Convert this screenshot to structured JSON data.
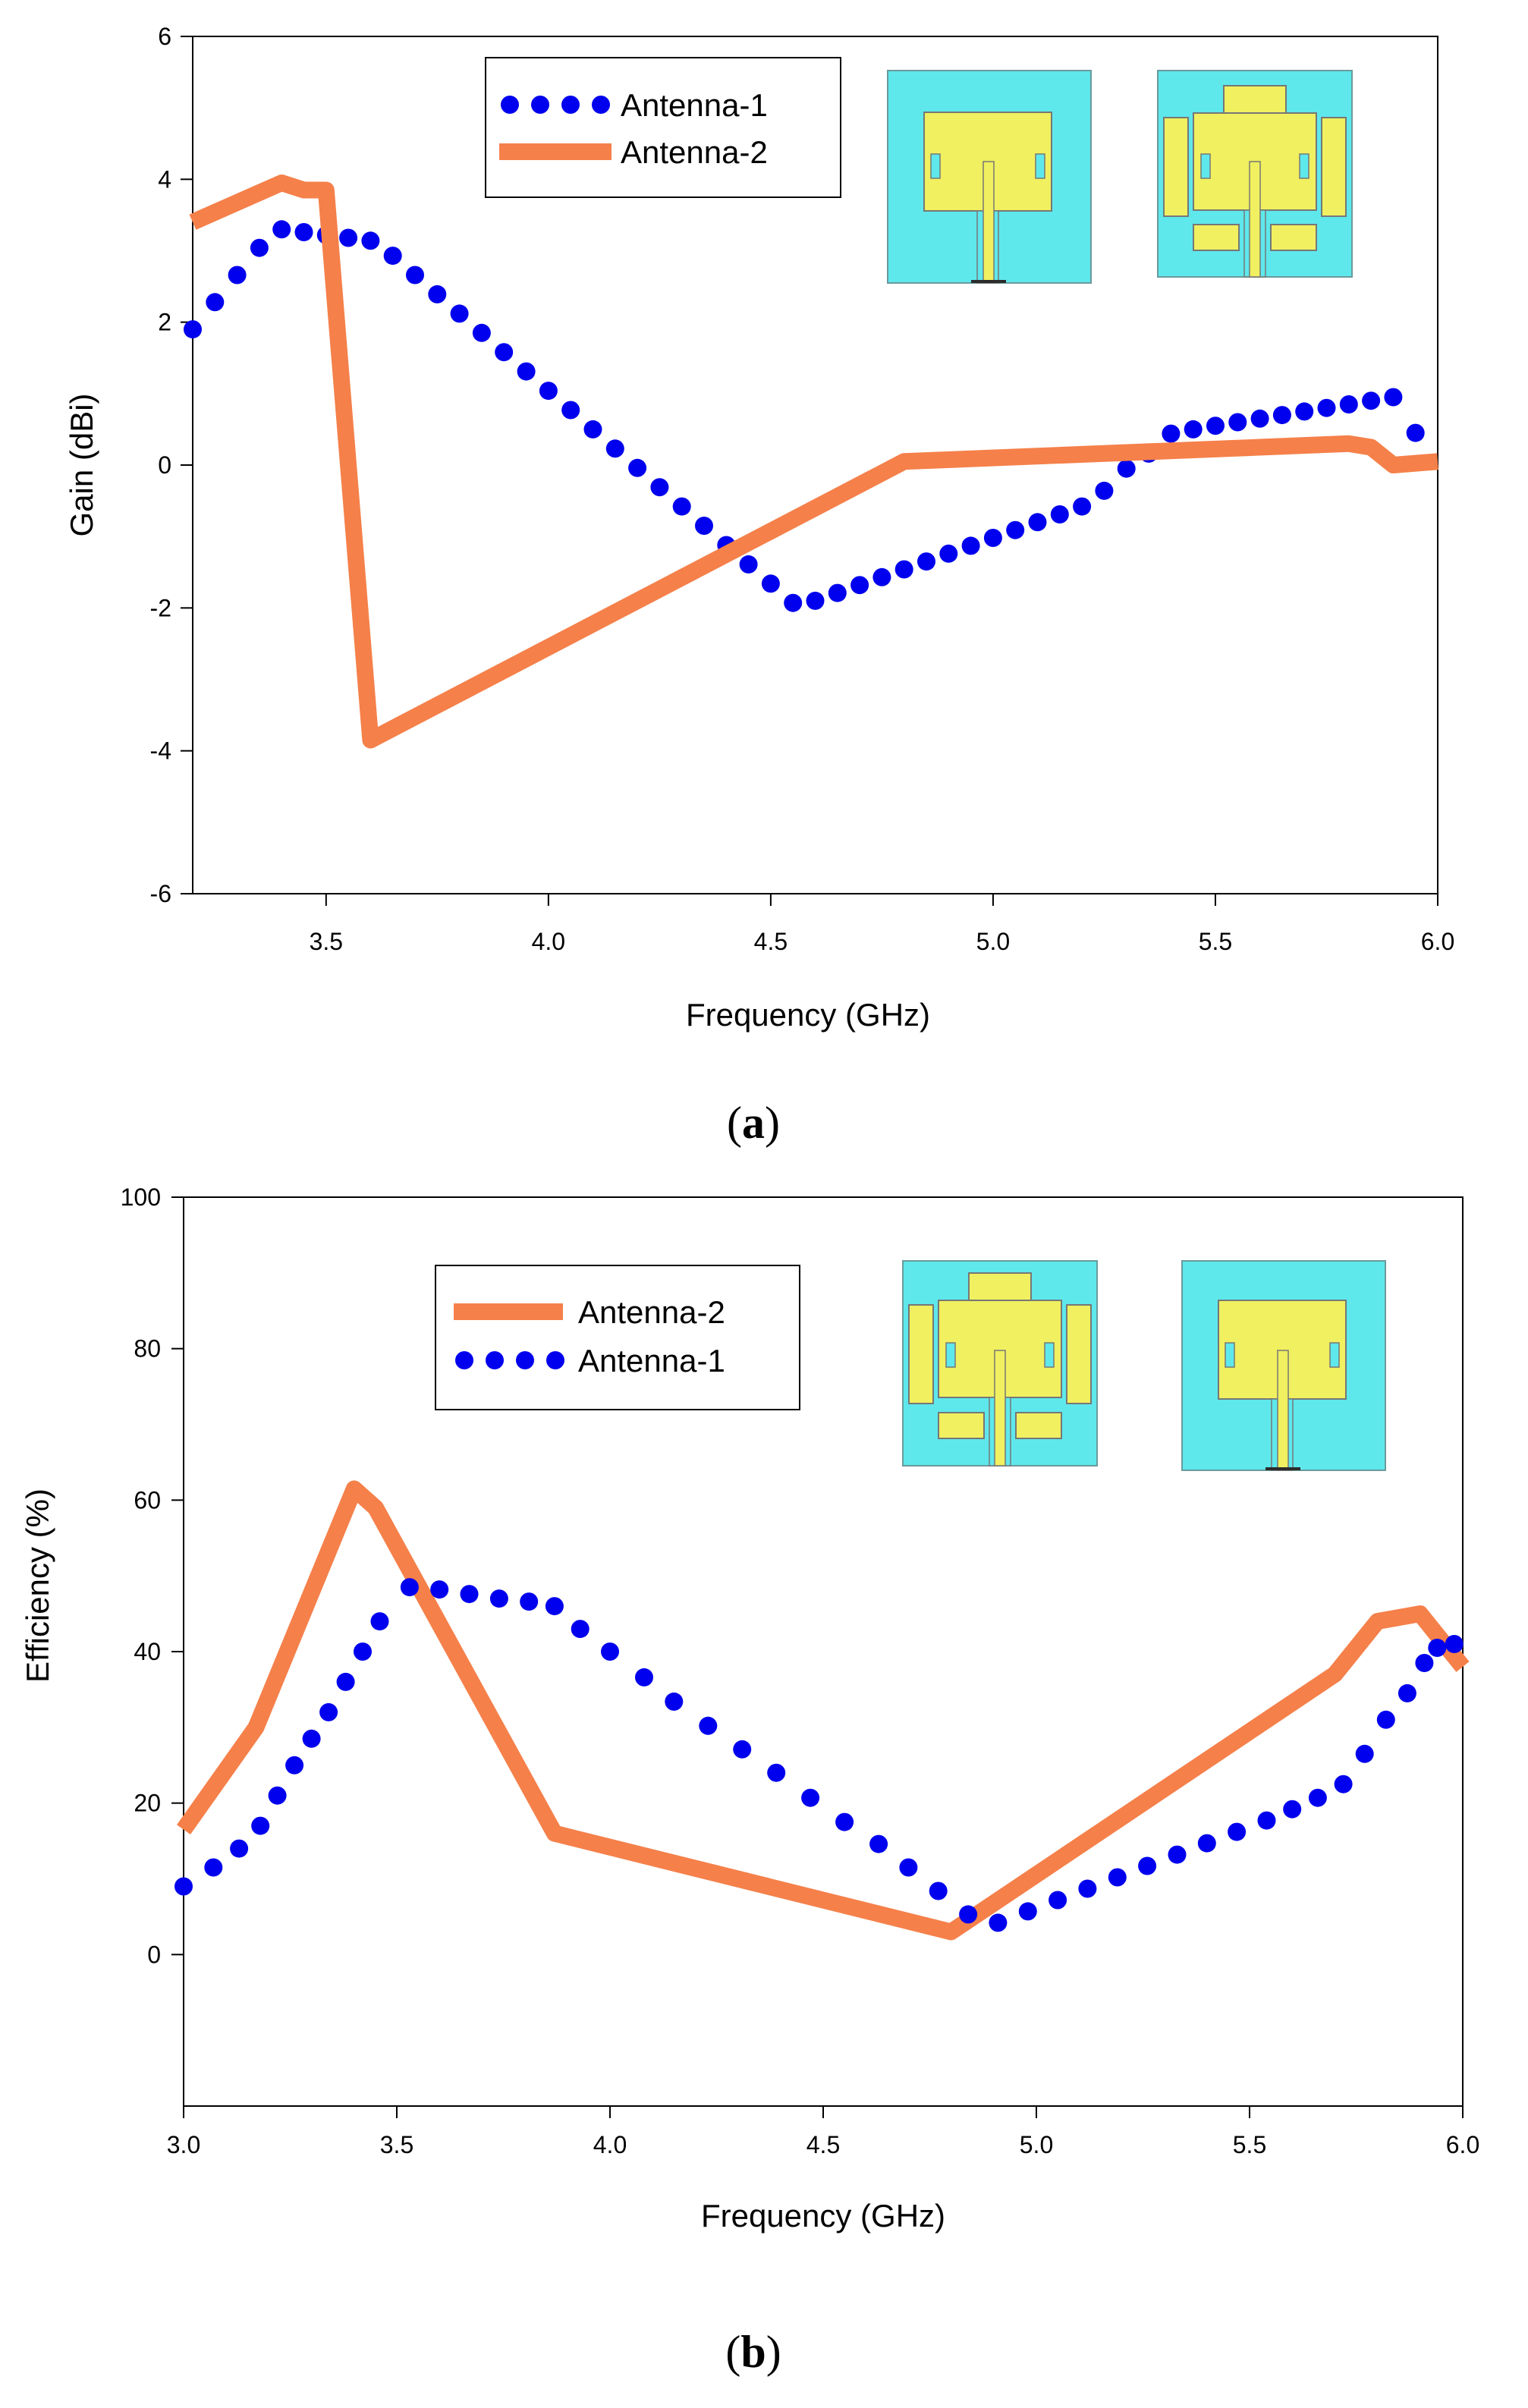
{
  "colors": {
    "antenna1": "#0000ee",
    "antenna2": "#f5804a",
    "substrate": "#5ee8ec",
    "patch": "#f0f060"
  },
  "chart_data": [
    {
      "panel": "a",
      "type": "line",
      "xlabel": "Frequency (GHz)",
      "ylabel": "Gain (dBi)",
      "xlim": [
        3.2,
        6.0
      ],
      "ylim": [
        -6,
        6
      ],
      "xticks": [
        3.5,
        4.0,
        4.5,
        5.0,
        5.5,
        6.0
      ],
      "xtick_labels": [
        "3.5",
        "4.0",
        "4.5",
        "5.0",
        "5.5",
        "6.0"
      ],
      "yticks": [
        -6,
        -4,
        -2,
        0,
        2,
        4,
        6
      ],
      "ytick_labels": [
        "-6",
        "-4",
        "-2",
        "0",
        "2",
        "4",
        "6"
      ],
      "grid": false,
      "legend_position": "top-center",
      "series": [
        {
          "name": "Antenna-1",
          "style": "dotted",
          "color": "#0000ee",
          "x": [
            3.2,
            3.25,
            3.3,
            3.35,
            3.4,
            3.45,
            3.5,
            3.55,
            3.6,
            3.65,
            3.7,
            3.75,
            3.8,
            3.85,
            3.9,
            3.95,
            4.0,
            4.05,
            4.1,
            4.15,
            4.2,
            4.25,
            4.3,
            4.35,
            4.4,
            4.45,
            4.5,
            4.55,
            4.6,
            4.65,
            4.7,
            4.75,
            4.8,
            4.85,
            4.9,
            4.95,
            5.0,
            5.05,
            5.1,
            5.15,
            5.2,
            5.25,
            5.3,
            5.35,
            5.4,
            5.45,
            5.5,
            5.55,
            5.6,
            5.65,
            5.7,
            5.75,
            5.8,
            5.85,
            5.9,
            5.95
          ],
          "y": [
            1.9,
            2.28,
            2.66,
            3.04,
            3.3,
            3.26,
            3.22,
            3.18,
            3.14,
            2.93,
            2.66,
            2.39,
            2.12,
            1.85,
            1.58,
            1.31,
            1.04,
            0.77,
            0.5,
            0.23,
            -0.04,
            -0.31,
            -0.58,
            -0.85,
            -1.12,
            -1.39,
            -1.66,
            -1.93,
            -1.9,
            -1.79,
            -1.68,
            -1.57,
            -1.46,
            -1.35,
            -1.24,
            -1.13,
            -1.02,
            -0.91,
            -0.8,
            -0.69,
            -0.58,
            -0.36,
            -0.05,
            0.16,
            0.44,
            0.5,
            0.55,
            0.6,
            0.65,
            0.7,
            0.75,
            0.8,
            0.85,
            0.9,
            0.95,
            0.45
          ]
        },
        {
          "name": "Antenna-2",
          "style": "solid",
          "color": "#f5804a",
          "x": [
            3.2,
            3.4,
            3.45,
            3.5,
            3.6,
            4.8,
            5.8,
            5.85,
            5.9,
            6.0
          ],
          "y": [
            3.4,
            3.95,
            3.85,
            3.85,
            -3.85,
            0.05,
            0.3,
            0.25,
            0.0,
            0.05
          ]
        }
      ]
    },
    {
      "panel": "b",
      "type": "line",
      "xlabel": "Frequency (GHz)",
      "ylabel": "Efficiency (%)",
      "xlim": [
        3.0,
        6.0
      ],
      "ylim": [
        -20,
        100
      ],
      "xticks": [
        3.0,
        3.5,
        4.0,
        4.5,
        5.0,
        5.5,
        6.0
      ],
      "xtick_labels": [
        "3.0",
        "3.5",
        "4.0",
        "4.5",
        "5.0",
        "5.5",
        "6.0"
      ],
      "yticks": [
        0,
        20,
        40,
        60,
        80,
        100
      ],
      "ytick_labels": [
        "0",
        "20",
        "40",
        "60",
        "80",
        "100"
      ],
      "grid": false,
      "legend_position": "top-center",
      "series": [
        {
          "name": "Antenna-2",
          "style": "solid",
          "color": "#f5804a",
          "x": [
            3.0,
            3.17,
            3.4,
            3.45,
            3.87,
            4.8,
            5.7,
            5.8,
            5.9,
            6.0
          ],
          "y": [
            16.5,
            30,
            61.5,
            59,
            16,
            3,
            37,
            44,
            45,
            38
          ]
        },
        {
          "name": "Antenna-1",
          "style": "dotted",
          "color": "#0000ee",
          "x": [
            3.0,
            3.07,
            3.13,
            3.18,
            3.22,
            3.26,
            3.3,
            3.34,
            3.38,
            3.42,
            3.46,
            3.53,
            3.6,
            3.67,
            3.74,
            3.81,
            3.87,
            3.93,
            4.0,
            4.08,
            4.15,
            4.23,
            4.31,
            4.39,
            4.47,
            4.55,
            4.63,
            4.7,
            4.77,
            4.84,
            4.91,
            4.98,
            5.05,
            5.12,
            5.19,
            5.26,
            5.33,
            5.4,
            5.47,
            5.54,
            5.6,
            5.66,
            5.72,
            5.77,
            5.82,
            5.87,
            5.91,
            5.94,
            5.98
          ],
          "y": [
            9,
            11.5,
            14,
            17,
            21,
            25,
            28.5,
            32,
            36,
            40,
            44,
            48.5,
            48.2,
            47.6,
            47,
            46.6,
            46,
            43,
            40,
            36.6,
            33.4,
            30.2,
            27.1,
            24,
            20.7,
            17.5,
            14.6,
            11.5,
            8.4,
            5.3,
            4.2,
            5.7,
            7.2,
            8.7,
            10.2,
            11.7,
            13.2,
            14.7,
            16.2,
            17.7,
            19.2,
            20.7,
            22.5,
            26.5,
            31,
            34.5,
            38.5,
            40.5,
            41
          ]
        }
      ]
    }
  ],
  "panel_a": {
    "label": "a",
    "legend": [
      "Antenna-1",
      "Antenna-2"
    ]
  },
  "panel_b": {
    "label": "b",
    "legend": [
      "Antenna-2",
      "Antenna-1"
    ]
  }
}
